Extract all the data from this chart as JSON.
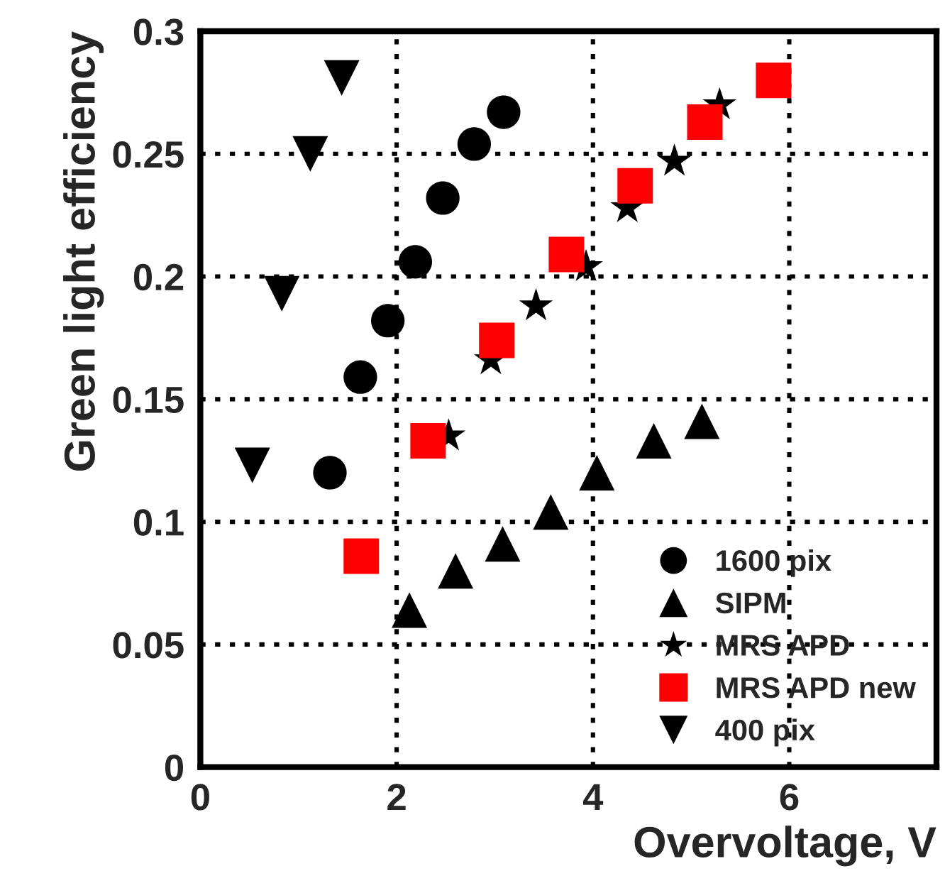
{
  "chart_data": {
    "type": "scatter",
    "xlabel": "Overvoltage, V",
    "ylabel": "Green light efficiency",
    "xlim": [
      0,
      7.5
    ],
    "xticks": [
      0,
      2,
      4,
      6
    ],
    "ylim": [
      0,
      0.3
    ],
    "yticks": [
      0,
      0.05,
      0.1,
      0.15,
      0.2,
      0.25,
      0.3
    ],
    "grid": true,
    "legend": "bottom right",
    "series": [
      {
        "name": "1600 pix",
        "color": "#000000",
        "marker": "circle",
        "x": [
          1.32,
          1.63,
          1.91,
          2.19,
          2.47,
          2.79,
          3.09
        ],
        "values": [
          0.12,
          0.159,
          0.182,
          0.206,
          0.232,
          0.254,
          0.267
        ]
      },
      {
        "name": "SIPM",
        "color": "#000000",
        "marker": "triangle",
        "x": [
          2.13,
          2.6,
          3.08,
          3.57,
          4.04,
          4.62,
          5.11
        ],
        "values": [
          0.064,
          0.08,
          0.091,
          0.104,
          0.12,
          0.133,
          0.141
        ]
      },
      {
        "name": "MRS APD",
        "color": "#000000",
        "marker": "star",
        "x": [
          2.53,
          2.96,
          3.42,
          3.93,
          4.35,
          4.83,
          5.29
        ],
        "values": [
          0.135,
          0.166,
          0.188,
          0.204,
          0.228,
          0.247,
          0.27
        ]
      },
      {
        "name": "MRS APD new",
        "color": "#ff0000",
        "marker": "square",
        "x": [
          1.64,
          2.32,
          3.02,
          3.73,
          4.43,
          5.14,
          5.84
        ],
        "values": [
          0.086,
          0.133,
          0.174,
          0.209,
          0.237,
          0.263,
          0.28
        ]
      },
      {
        "name": "400 pix",
        "color": "#000000",
        "marker": "triangle_down",
        "x": [
          0.53,
          0.83,
          1.12,
          1.44
        ],
        "values": [
          0.123,
          0.193,
          0.25,
          0.281
        ]
      }
    ]
  }
}
